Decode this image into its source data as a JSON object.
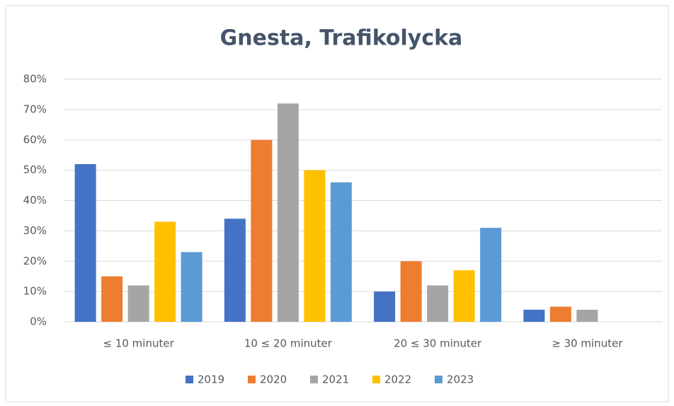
{
  "chart_data": {
    "type": "bar",
    "title": "Gnesta, Trafikolycka",
    "categories": [
      "≤ 10 minuter",
      "10 ≤ 20 minuter",
      "20 ≤ 30 minuter",
      "≥ 30 minuter"
    ],
    "series": [
      {
        "name": "2019",
        "color": "#4472c4",
        "values": [
          52,
          34,
          10,
          4
        ]
      },
      {
        "name": "2020",
        "color": "#ed7d31",
        "values": [
          15,
          60,
          20,
          5
        ]
      },
      {
        "name": "2021",
        "color": "#a5a5a5",
        "values": [
          12,
          72,
          12,
          4
        ]
      },
      {
        "name": "2022",
        "color": "#ffc000",
        "values": [
          33,
          50,
          17,
          0
        ]
      },
      {
        "name": "2023",
        "color": "#5b9bd5",
        "values": [
          23,
          46,
          31,
          0
        ]
      }
    ],
    "ylim": [
      0,
      80
    ],
    "yticks": [
      {
        "value": 0,
        "label": "0%"
      },
      {
        "value": 10,
        "label": "10%"
      },
      {
        "value": 20,
        "label": "20%"
      },
      {
        "value": 30,
        "label": "30%"
      },
      {
        "value": 40,
        "label": "40%"
      },
      {
        "value": 50,
        "label": "50%"
      },
      {
        "value": 60,
        "label": "60%"
      },
      {
        "value": 70,
        "label": "70%"
      },
      {
        "value": 80,
        "label": "80%"
      }
    ],
    "grid": true,
    "legend": "bottom"
  }
}
